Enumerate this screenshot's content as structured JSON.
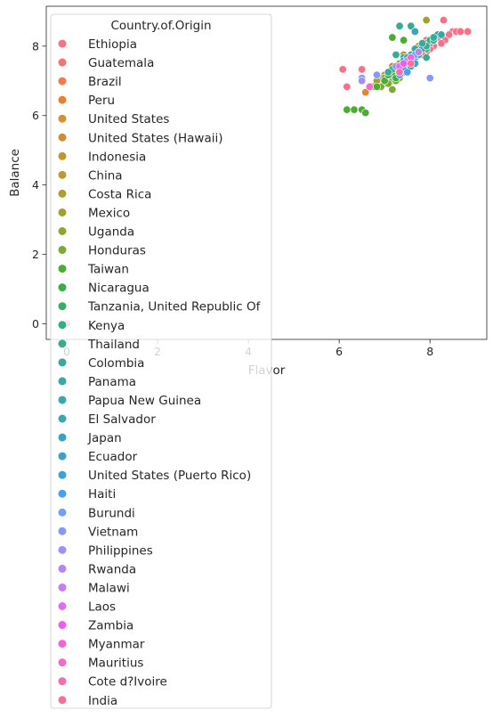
{
  "chart_data": {
    "type": "scatter",
    "xlabel": "Flavor",
    "ylabel": "Balance",
    "xlim": [
      -0.45,
      9.25
    ],
    "ylim": [
      -0.45,
      9.15
    ],
    "xticks": [
      0,
      2,
      4,
      6,
      8
    ],
    "yticks": [
      0,
      2,
      4,
      6,
      8
    ],
    "grid": false,
    "legend": {
      "title": "Country.of.Origin",
      "placement": "upper-left"
    },
    "series": [
      {
        "name": "Ethiopia",
        "color": "#f77189",
        "points": [
          [
            8.3,
            8.75
          ],
          [
            8.5,
            8.42
          ],
          [
            8.58,
            8.42
          ],
          [
            8.67,
            8.42
          ],
          [
            8.83,
            8.42
          ],
          [
            8.42,
            8.33
          ],
          [
            8.17,
            8.25
          ],
          [
            8.33,
            8.17
          ],
          [
            8.08,
            8.0
          ],
          [
            8.0,
            7.92
          ],
          [
            7.92,
            7.83
          ],
          [
            8.25,
            8.08
          ],
          [
            6.08,
            7.33
          ],
          [
            6.17,
            6.83
          ],
          [
            6.5,
            7.33
          ],
          [
            0.0,
            0.0
          ]
        ]
      },
      {
        "name": "Guatemala",
        "color": "#f27673",
        "points": [
          [
            7.58,
            7.75
          ],
          [
            7.75,
            7.83
          ],
          [
            7.83,
            8.08
          ],
          [
            7.67,
            7.58
          ],
          [
            7.5,
            7.5
          ],
          [
            7.33,
            7.42
          ],
          [
            7.42,
            7.67
          ],
          [
            7.92,
            8.17
          ],
          [
            8.0,
            8.08
          ],
          [
            7.17,
            7.25
          ]
        ]
      },
      {
        "name": "Brazil",
        "color": "#ef7d4e",
        "points": [
          [
            7.5,
            7.42
          ],
          [
            7.33,
            7.5
          ],
          [
            7.42,
            7.25
          ],
          [
            7.67,
            7.67
          ],
          [
            7.25,
            7.17
          ],
          [
            7.08,
            7.08
          ],
          [
            7.83,
            7.75
          ],
          [
            7.58,
            7.58
          ],
          [
            7.0,
            7.0
          ],
          [
            6.83,
            6.92
          ]
        ]
      },
      {
        "name": "Peru",
        "color": "#e98230",
        "points": [
          [
            7.33,
            7.42
          ],
          [
            7.5,
            7.33
          ],
          [
            7.58,
            7.67
          ],
          [
            7.42,
            7.58
          ],
          [
            7.17,
            7.25
          ],
          [
            6.58,
            6.67
          ]
        ]
      },
      {
        "name": "United States",
        "color": "#d78f32",
        "points": [
          [
            7.75,
            8.0
          ],
          [
            7.83,
            7.92
          ]
        ]
      },
      {
        "name": "United States (Hawaii)",
        "color": "#cd8d32",
        "points": [
          [
            7.42,
            7.58
          ],
          [
            7.58,
            7.75
          ],
          [
            7.25,
            7.42
          ],
          [
            7.0,
            7.17
          ],
          [
            6.75,
            6.83
          ]
        ]
      },
      {
        "name": "Indonesia",
        "color": "#c4952f",
        "points": [
          [
            7.5,
            7.67
          ],
          [
            7.67,
            7.5
          ],
          [
            7.33,
            7.33
          ],
          [
            7.17,
            7.08
          ]
        ]
      },
      {
        "name": "China",
        "color": "#bc9b30",
        "points": [
          [
            7.42,
            7.5
          ],
          [
            7.58,
            7.42
          ]
        ]
      },
      {
        "name": "Costa Rica",
        "color": "#b09d31",
        "points": [
          [
            7.58,
            7.67
          ],
          [
            7.42,
            7.75
          ],
          [
            7.67,
            7.58
          ],
          [
            7.75,
            7.92
          ],
          [
            7.33,
            7.5
          ],
          [
            7.5,
            7.33
          ]
        ]
      },
      {
        "name": "Mexico",
        "color": "#a2a030",
        "points": [
          [
            7.25,
            7.17
          ],
          [
            7.17,
            7.0
          ],
          [
            7.33,
            7.08
          ],
          [
            7.08,
            7.25
          ],
          [
            7.42,
            7.33
          ],
          [
            7.0,
            6.92
          ],
          [
            6.92,
            7.08
          ],
          [
            7.5,
            7.42
          ],
          [
            7.92,
            8.75
          ],
          [
            6.83,
            7.0
          ],
          [
            7.5,
            7.5
          ],
          [
            7.17,
            7.42
          ]
        ]
      },
      {
        "name": "Uganda",
        "color": "#93a330",
        "points": [
          [
            7.58,
            7.58
          ],
          [
            7.67,
            7.83
          ],
          [
            7.42,
            7.5
          ]
        ]
      },
      {
        "name": "Honduras",
        "color": "#7ca931",
        "points": [
          [
            7.17,
            6.75
          ],
          [
            7.08,
            6.92
          ],
          [
            7.25,
            7.0
          ],
          [
            6.92,
            6.83
          ],
          [
            6.75,
            6.83
          ],
          [
            7.33,
            7.17
          ],
          [
            7.42,
            7.25
          ],
          [
            7.0,
            7.08
          ]
        ]
      },
      {
        "name": "Taiwan",
        "color": "#4bac33",
        "points": [
          [
            6.17,
            6.17
          ],
          [
            6.33,
            6.17
          ],
          [
            6.5,
            6.17
          ],
          [
            6.58,
            6.08
          ],
          [
            6.83,
            6.83
          ],
          [
            7.0,
            7.0
          ],
          [
            7.17,
            7.17
          ],
          [
            7.33,
            7.33
          ],
          [
            7.5,
            7.5
          ],
          [
            7.67,
            7.67
          ],
          [
            7.17,
            8.25
          ],
          [
            7.42,
            8.17
          ]
        ]
      },
      {
        "name": "Nicaragua",
        "color": "#3aad49",
        "points": [
          [
            7.25,
            7.08
          ],
          [
            7.42,
            7.25
          ],
          [
            7.08,
            7.17
          ],
          [
            7.58,
            7.42
          ]
        ]
      },
      {
        "name": "Tanzania, United Republic Of",
        "color": "#35ad6c",
        "points": [
          [
            7.5,
            7.67
          ],
          [
            7.58,
            7.58
          ],
          [
            7.67,
            7.75
          ],
          [
            7.42,
            7.5
          ]
        ]
      },
      {
        "name": "Kenya",
        "color": "#36ae7c",
        "points": [
          [
            7.83,
            8.0
          ],
          [
            7.92,
            8.08
          ],
          [
            8.0,
            8.17
          ],
          [
            7.75,
            7.92
          ],
          [
            8.08,
            8.25
          ],
          [
            7.67,
            7.83
          ],
          [
            7.92,
            7.92
          ]
        ]
      },
      {
        "name": "Thailand",
        "color": "#37ad8d",
        "points": [
          [
            7.17,
            7.33
          ],
          [
            7.33,
            7.42
          ],
          [
            7.08,
            7.25
          ]
        ]
      },
      {
        "name": "Colombia",
        "color": "#38aa97",
        "points": [
          [
            7.58,
            7.75
          ],
          [
            7.67,
            7.67
          ],
          [
            7.75,
            7.83
          ],
          [
            7.83,
            7.92
          ],
          [
            7.5,
            7.58
          ],
          [
            7.42,
            7.67
          ],
          [
            7.92,
            8.0
          ],
          [
            7.67,
            7.5
          ],
          [
            7.58,
            8.58
          ],
          [
            7.67,
            8.42
          ],
          [
            7.33,
            8.58
          ],
          [
            8.08,
            8.17
          ],
          [
            8.17,
            8.33
          ],
          [
            7.25,
            7.75
          ],
          [
            7.92,
            7.67
          ]
        ]
      },
      {
        "name": "Panama",
        "color": "#38a9a2",
        "points": [
          [
            7.67,
            7.92
          ],
          [
            7.83,
            8.08
          ],
          [
            8.08,
            8.25
          ],
          [
            8.25,
            8.33
          ]
        ]
      },
      {
        "name": "Papua New Guinea",
        "color": "#39a7ab",
        "points": [
          [
            7.42,
            7.58
          ]
        ]
      },
      {
        "name": "El Salvador",
        "color": "#3aa6b2",
        "points": [
          [
            7.58,
            7.5
          ],
          [
            7.75,
            7.75
          ],
          [
            7.67,
            8.42
          ]
        ]
      },
      {
        "name": "Japan",
        "color": "#3ba4bd",
        "points": [
          [
            7.5,
            7.67
          ]
        ]
      },
      {
        "name": "Ecuador",
        "color": "#3ca2c7",
        "points": [
          [
            7.75,
            7.83
          ],
          [
            7.58,
            7.42
          ]
        ]
      },
      {
        "name": "United States (Puerto Rico)",
        "color": "#3da0d4",
        "points": [
          [
            7.42,
            7.33
          ],
          [
            7.67,
            7.5
          ]
        ]
      },
      {
        "name": "Haiti",
        "color": "#46a0ef",
        "points": [
          [
            7.33,
            7.17
          ],
          [
            7.5,
            7.25
          ]
        ]
      },
      {
        "name": "Burundi",
        "color": "#6fa2f4",
        "points": [
          [
            7.67,
            7.75
          ]
        ]
      },
      {
        "name": "Vietnam",
        "color": "#8998f4",
        "points": [
          [
            8.0,
            7.08
          ],
          [
            6.5,
            7.08
          ],
          [
            6.83,
            7.17
          ]
        ]
      },
      {
        "name": "Philippines",
        "color": "#a38ef4",
        "points": [
          [
            7.25,
            7.42
          ],
          [
            6.5,
            7.0
          ]
        ]
      },
      {
        "name": "Rwanda",
        "color": "#b784f4",
        "points": [
          [
            7.75,
            7.83
          ]
        ]
      },
      {
        "name": "Malawi",
        "color": "#c97af4",
        "points": [
          [
            7.5,
            7.58
          ]
        ]
      },
      {
        "name": "Laos",
        "color": "#dc6ef4",
        "points": [
          [
            7.33,
            7.42
          ]
        ]
      },
      {
        "name": "Zambia",
        "color": "#ea60ea",
        "points": [
          [
            7.42,
            7.5
          ]
        ]
      },
      {
        "name": "Myanmar",
        "color": "#f265d6",
        "points": [
          [
            7.58,
            7.67
          ]
        ]
      },
      {
        "name": "Mauritius",
        "color": "#f36bc3",
        "points": [
          [
            6.67,
            6.83
          ]
        ]
      },
      {
        "name": "Cote d?Ivoire",
        "color": "#f56eb0",
        "points": [
          [
            7.33,
            7.25
          ]
        ]
      },
      {
        "name": "India",
        "color": "#f7709c",
        "points": [
          [
            7.58,
            7.5
          ]
        ]
      }
    ]
  }
}
